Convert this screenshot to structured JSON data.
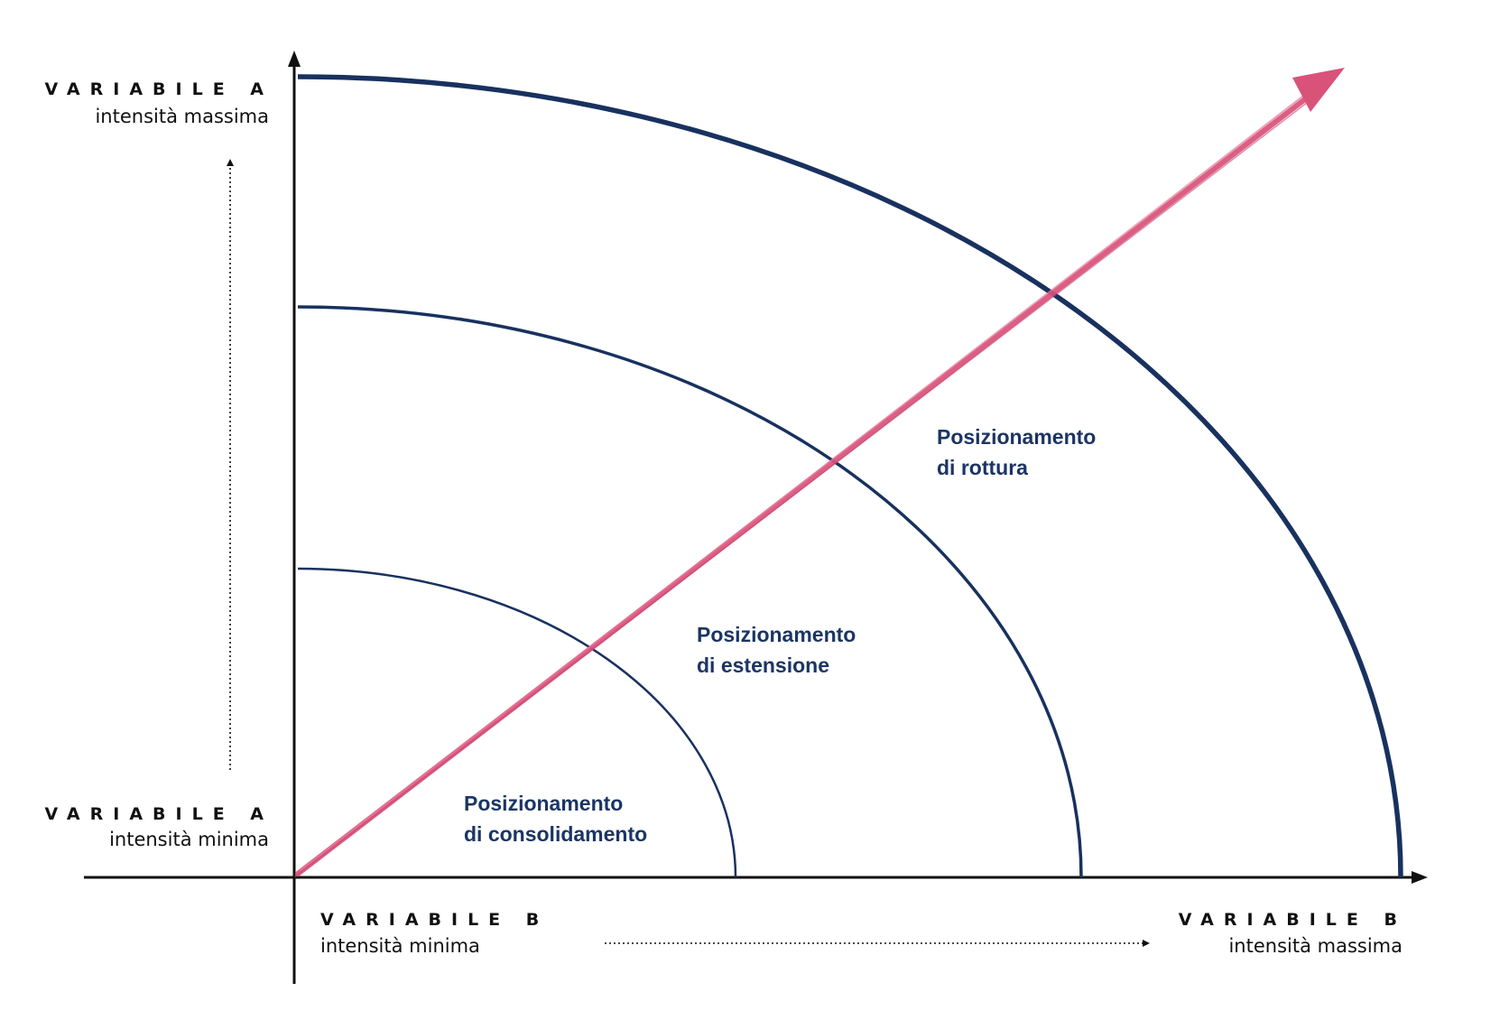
{
  "colors": {
    "curve": "#18315f",
    "arrow": "#d9527a",
    "axis": "#111111",
    "zone_text": "#1b3564"
  },
  "axis_a": {
    "max_title": "VARIABILE A",
    "max_sub": "intensità massima",
    "min_title": "VARIABILE A",
    "min_sub": "intensità minima"
  },
  "axis_b": {
    "min_title": "VARIABILE B",
    "min_sub": "intensità minima",
    "max_title": "VARIABILE B",
    "max_sub": "intensità massima"
  },
  "zones": [
    {
      "line1": "Posizionamento",
      "line2": "di consolidamento"
    },
    {
      "line1": "Posizionamento",
      "line2": "di estensione"
    },
    {
      "line1": "Posizionamento",
      "line2": "di rottura"
    }
  ]
}
